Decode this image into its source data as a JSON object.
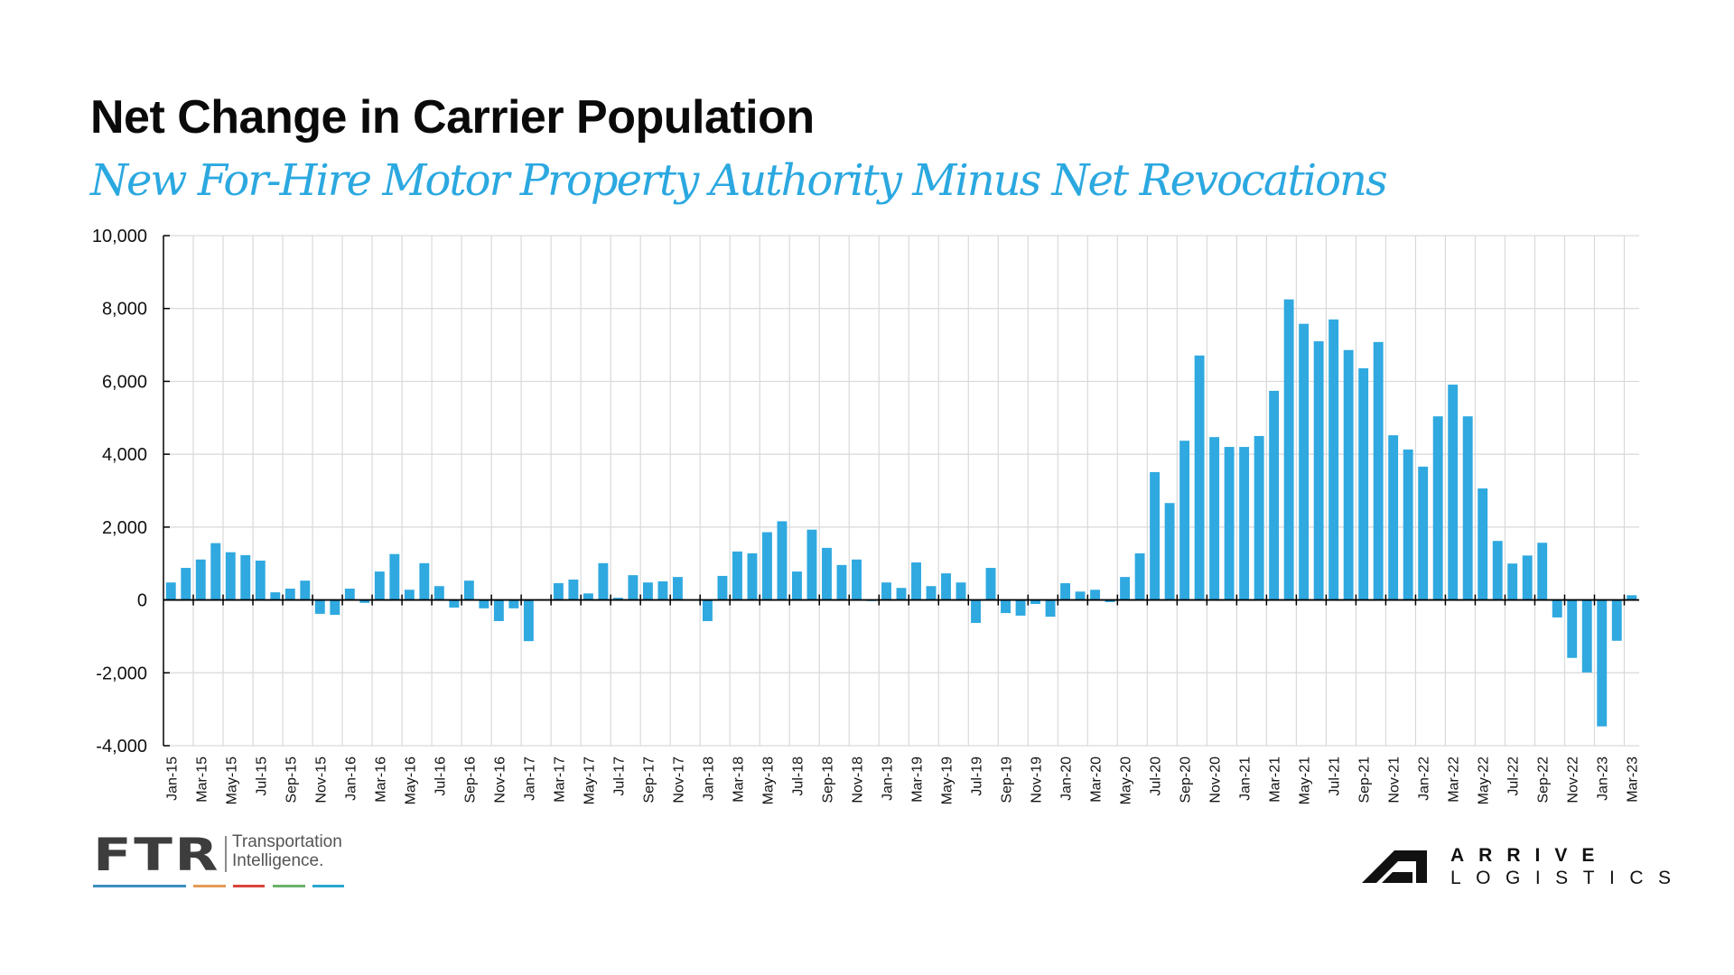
{
  "header": {
    "title": "Net Change in Carrier Population",
    "subtitle": "New For-Hire Motor Property Authority Minus Net Revocations"
  },
  "colors": {
    "bar": "#2fa9e0",
    "subtitle": "#2ba8e0",
    "grid": "#d9d9d9",
    "axis": "#000000"
  },
  "chart_data": {
    "type": "bar",
    "title": "Net Change in Carrier Population",
    "subtitle": "New For-Hire Motor Property Authority Minus Net Revocations",
    "xlabel": "",
    "ylabel": "",
    "ylim": [
      -4000,
      10000
    ],
    "yticks": [
      -4000,
      -2000,
      0,
      2000,
      4000,
      6000,
      8000,
      10000
    ],
    "ytick_labels": [
      "-4,000",
      "-2,000",
      "0",
      "2,000",
      "4,000",
      "6,000",
      "8,000",
      "10,000"
    ],
    "grid": true,
    "legend": "none",
    "categories": [
      "Jan-15",
      "Feb-15",
      "Mar-15",
      "Apr-15",
      "May-15",
      "Jun-15",
      "Jul-15",
      "Aug-15",
      "Sep-15",
      "Oct-15",
      "Nov-15",
      "Dec-15",
      "Jan-16",
      "Feb-16",
      "Mar-16",
      "Apr-16",
      "May-16",
      "Jun-16",
      "Jul-16",
      "Aug-16",
      "Sep-16",
      "Oct-16",
      "Nov-16",
      "Dec-16",
      "Jan-17",
      "Feb-17",
      "Mar-17",
      "Apr-17",
      "May-17",
      "Jun-17",
      "Jul-17",
      "Aug-17",
      "Sep-17",
      "Oct-17",
      "Nov-17",
      "Dec-17",
      "Jan-18",
      "Feb-18",
      "Mar-18",
      "Apr-18",
      "May-18",
      "Jun-18",
      "Jul-18",
      "Aug-18",
      "Sep-18",
      "Oct-18",
      "Nov-18",
      "Dec-18",
      "Jan-19",
      "Feb-19",
      "Mar-19",
      "Apr-19",
      "May-19",
      "Jun-19",
      "Jul-19",
      "Aug-19",
      "Sep-19",
      "Oct-19",
      "Nov-19",
      "Dec-19",
      "Jan-20",
      "Feb-20",
      "Mar-20",
      "Apr-20",
      "May-20",
      "Jun-20",
      "Jul-20",
      "Aug-20",
      "Sep-20",
      "Oct-20",
      "Nov-20",
      "Dec-20",
      "Jan-21",
      "Feb-21",
      "Mar-21",
      "Apr-21",
      "May-21",
      "Jun-21",
      "Jul-21",
      "Aug-21",
      "Sep-21",
      "Oct-21",
      "Nov-21",
      "Dec-21",
      "Jan-22",
      "Feb-22",
      "Mar-22",
      "Apr-22",
      "May-22",
      "Jun-22",
      "Jul-22",
      "Aug-22",
      "Sep-22",
      "Oct-22",
      "Nov-22",
      "Dec-22",
      "Jan-23",
      "Feb-23",
      "Mar-23"
    ],
    "series": [
      {
        "name": "Net change",
        "values": [
          480,
          880,
          1110,
          1560,
          1310,
          1230,
          1080,
          210,
          310,
          530,
          -380,
          -410,
          310,
          -80,
          780,
          1260,
          280,
          1010,
          380,
          -210,
          530,
          -230,
          -580,
          -230,
          -1130,
          0,
          460,
          560,
          180,
          1010,
          60,
          680,
          480,
          510,
          630,
          0,
          -580,
          660,
          1330,
          1280,
          1860,
          2160,
          780,
          1930,
          1430,
          960,
          1110,
          -30,
          480,
          330,
          1030,
          380,
          730,
          480,
          -630,
          880,
          -360,
          -430,
          -110,
          -460,
          460,
          230,
          280,
          -60,
          630,
          1280,
          3510,
          2660,
          4370,
          6710,
          4470,
          4200,
          4200,
          4500,
          5740,
          8250,
          7580,
          7100,
          7700,
          6860,
          6360,
          7080,
          4520,
          4130,
          3660,
          5040,
          5910,
          5040,
          3060,
          1620,
          1000,
          1220,
          1570,
          -480,
          -1590,
          -1990,
          -3470,
          -1120,
          130
        ]
      }
    ],
    "x_tick_label_every": 2
  },
  "footer": {
    "ftr_mark": "FTR",
    "ftr_line1": "Transportation",
    "ftr_line2": "Intelligence.",
    "ftr_stripe_colors": [
      "#3a8fc0",
      "#e59a55",
      "#d9443a",
      "#6ab26a",
      "#2aa8d0"
    ],
    "arrive_line1": "ARRIVE",
    "arrive_line2": "LOGISTICS"
  }
}
